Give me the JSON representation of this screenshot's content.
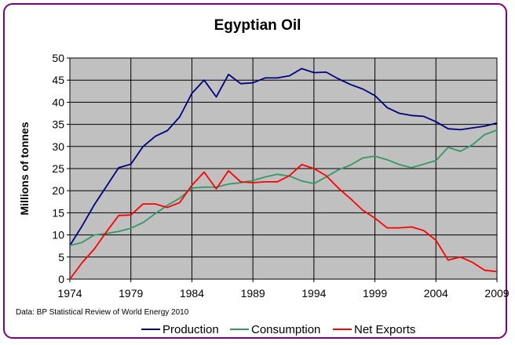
{
  "chart_data": {
    "type": "line",
    "title": "Egyptian Oil",
    "ylabel": "Millions of tonnes",
    "xlabel": "",
    "source": "Data: BP Statistical Review of World Energy 2010",
    "xlim": [
      1974,
      2009
    ],
    "ylim": [
      0,
      50
    ],
    "x_ticks": [
      1974,
      1979,
      1984,
      1989,
      1994,
      1999,
      2004,
      2009
    ],
    "y_ticks": [
      0,
      5,
      10,
      15,
      20,
      25,
      30,
      35,
      40,
      45,
      50
    ],
    "grid": true,
    "legend_position": "bottom",
    "plot_background": "#c0c0c0",
    "x": [
      1974,
      1975,
      1976,
      1977,
      1978,
      1979,
      1980,
      1981,
      1982,
      1983,
      1984,
      1985,
      1986,
      1987,
      1988,
      1989,
      1990,
      1991,
      1992,
      1993,
      1994,
      1995,
      1996,
      1997,
      1998,
      1999,
      2000,
      2001,
      2002,
      2003,
      2004,
      2005,
      2006,
      2007,
      2008,
      2009
    ],
    "series": [
      {
        "name": "Production",
        "color": "#000080",
        "values": [
          7.6,
          12.0,
          16.8,
          21.0,
          25.2,
          26.0,
          30.0,
          32.3,
          33.6,
          36.7,
          42.0,
          45.0,
          41.2,
          46.3,
          44.2,
          44.4,
          45.5,
          45.5,
          46.0,
          47.6,
          46.7,
          46.8,
          45.3,
          44.0,
          43.0,
          41.5,
          38.8,
          37.5,
          37.0,
          36.8,
          35.6,
          34.0,
          33.8,
          34.2,
          34.6,
          35.3
        ]
      },
      {
        "name": "Consumption",
        "color": "#339966",
        "values": [
          7.6,
          8.3,
          10.0,
          10.3,
          10.8,
          11.5,
          12.8,
          14.8,
          16.7,
          18.3,
          20.6,
          20.8,
          20.8,
          21.5,
          21.8,
          22.3,
          23.1,
          23.7,
          23.3,
          22.2,
          21.6,
          23.1,
          24.7,
          25.8,
          27.4,
          27.8,
          27.0,
          25.9,
          25.2,
          26.0,
          26.8,
          29.8,
          28.9,
          30.4,
          32.7,
          33.7
        ]
      },
      {
        "name": "Net Exports",
        "color": "#ff0000",
        "values": [
          0.0,
          3.7,
          6.8,
          10.7,
          14.4,
          14.5,
          17.0,
          17.0,
          16.2,
          17.3,
          21.2,
          24.2,
          20.4,
          24.5,
          22.0,
          21.8,
          22.0,
          22.0,
          23.4,
          25.9,
          25.0,
          23.4,
          20.6,
          18.2,
          15.6,
          13.8,
          11.6,
          11.6,
          11.8,
          11.0,
          8.8,
          4.3,
          5.0,
          3.8,
          2.0,
          1.7
        ]
      }
    ]
  }
}
